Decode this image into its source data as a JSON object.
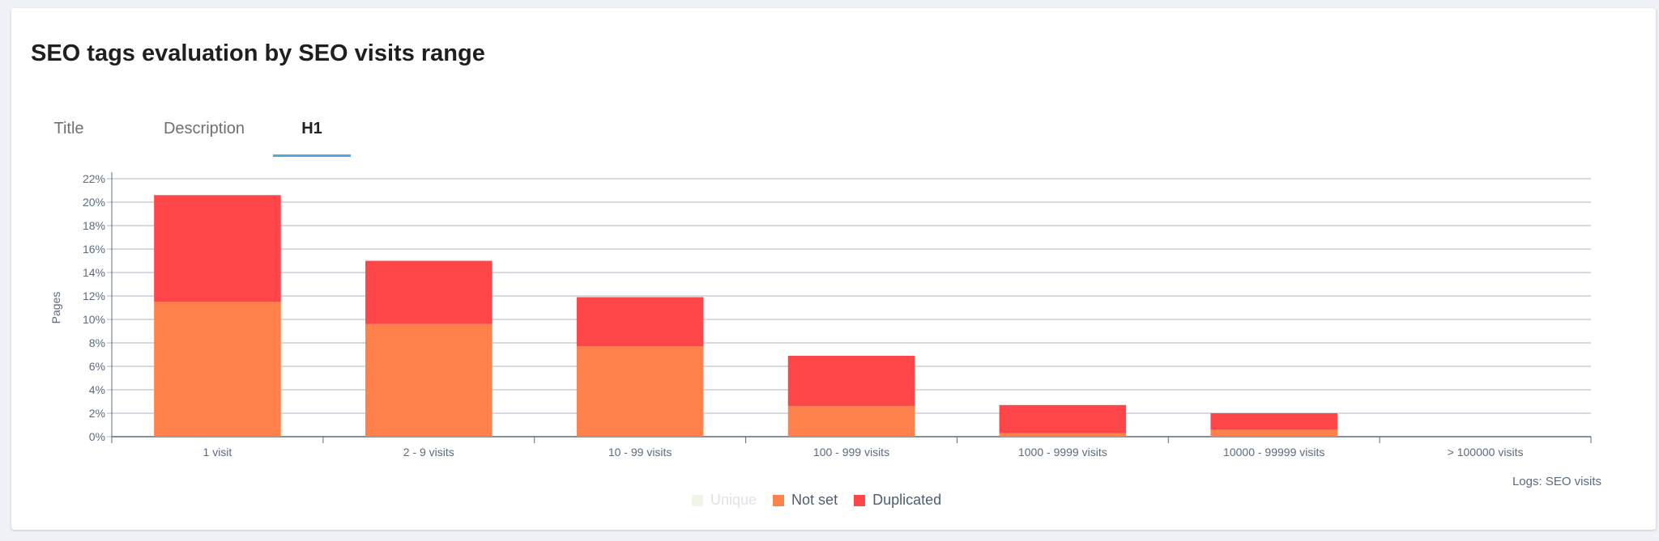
{
  "title": "SEO tags evaluation by SEO visits range",
  "tabs": [
    {
      "label": "Title",
      "active": false
    },
    {
      "label": "Description",
      "active": false
    },
    {
      "label": "H1",
      "active": true
    }
  ],
  "colors": {
    "accent": "#53a8e2",
    "unique": "#eef6e6",
    "not_set": "#fe814c",
    "duplicated": "#fe4649",
    "grid": "#a9b3c4",
    "axis_text": "#5a6b80"
  },
  "chart_data": {
    "type": "bar",
    "stacked": true,
    "ylabel": "Pages",
    "xlabel": "",
    "ylim": [
      0,
      22
    ],
    "y_ticks": [
      "0%",
      "2%",
      "4%",
      "6%",
      "8%",
      "10%",
      "12%",
      "14%",
      "16%",
      "18%",
      "20%",
      "22%"
    ],
    "categories": [
      "1 visit",
      "2 - 9 visits",
      "10 - 99 visits",
      "100 - 999 visits",
      "1000 - 9999 visits",
      "10000 - 99999 visits",
      "> 100000 visits"
    ],
    "series": [
      {
        "name": "Unique",
        "visible": false,
        "values": [
          0,
          0,
          0,
          0,
          0,
          0,
          0
        ]
      },
      {
        "name": "Not set",
        "visible": true,
        "values": [
          11.5,
          9.6,
          7.7,
          2.6,
          0.3,
          0.6,
          0
        ]
      },
      {
        "name": "Duplicated",
        "visible": true,
        "values": [
          9.1,
          5.4,
          4.2,
          4.3,
          2.4,
          1.4,
          0
        ]
      }
    ],
    "source": "Logs: SEO visits",
    "legend_position": "bottom-center",
    "grid": true
  }
}
